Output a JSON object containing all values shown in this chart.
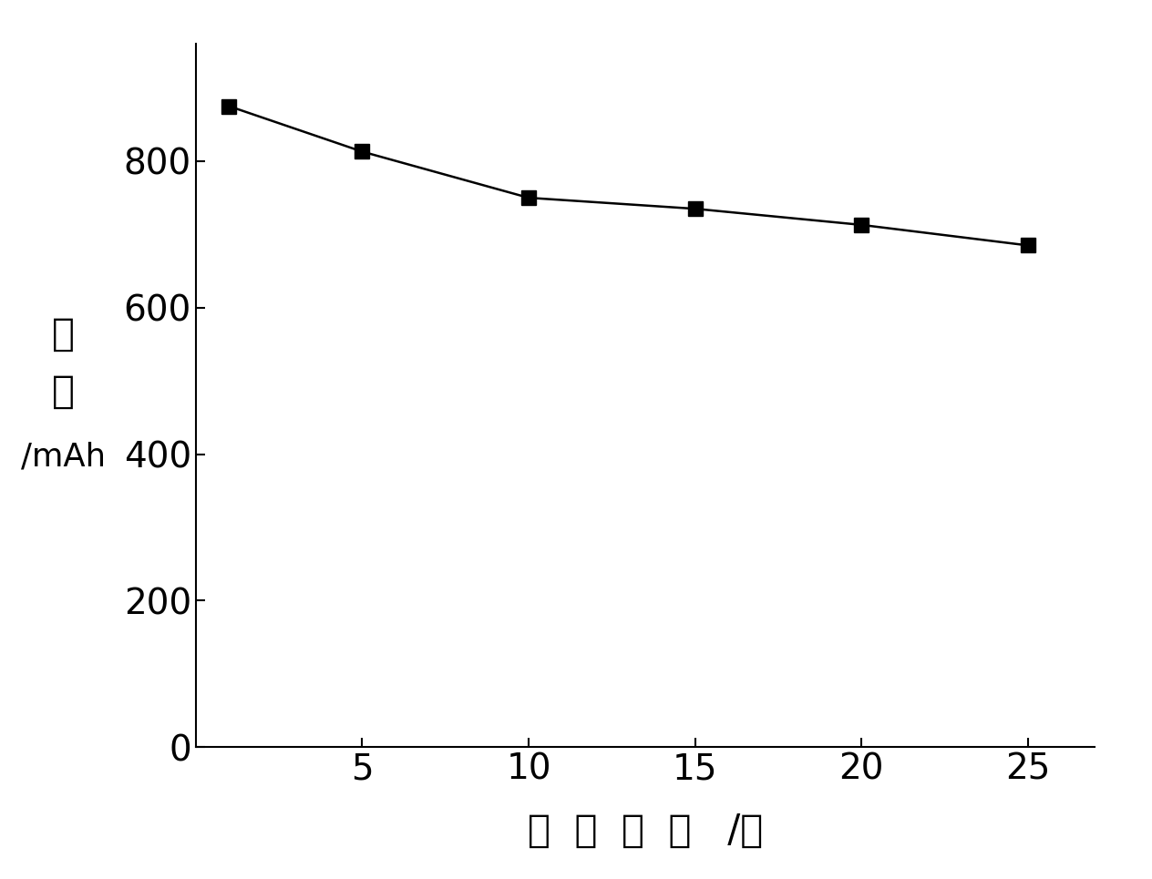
{
  "x": [
    1,
    5,
    10,
    15,
    20,
    25
  ],
  "y": [
    875,
    813,
    750,
    735,
    713,
    685
  ],
  "xlabel_parts": [
    "循",
    "环",
    "次",
    "数",
    " /次"
  ],
  "ylabel_top": "容",
  "ylabel_mid": "量",
  "ylabel_bot": "/mAh",
  "xlim": [
    0,
    27
  ],
  "ylim": [
    0,
    960
  ],
  "xticks": [
    5,
    10,
    15,
    20,
    25
  ],
  "yticks": [
    0,
    200,
    400,
    600,
    800
  ],
  "line_color": "#000000",
  "marker": "s",
  "marker_size": 11,
  "marker_color": "#000000",
  "line_width": 1.8,
  "background_color": "#ffffff",
  "tick_fontsize": 28,
  "label_fontsize": 30
}
